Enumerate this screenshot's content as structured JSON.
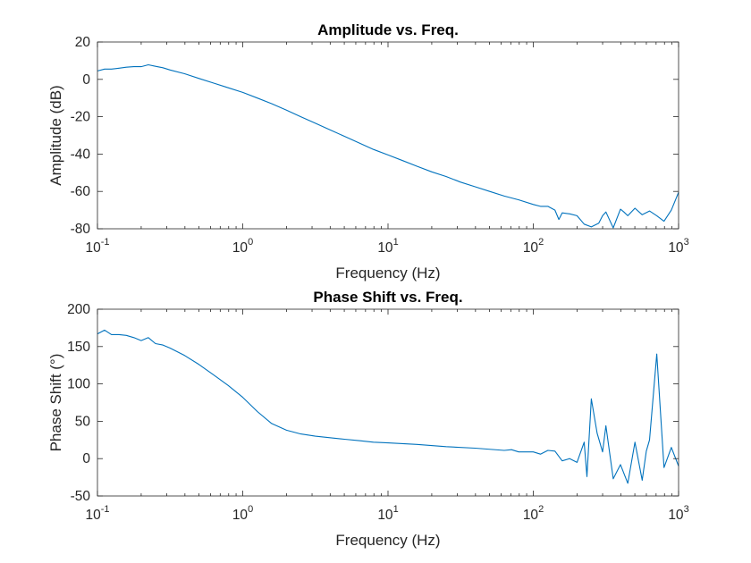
{
  "series_color": "#0072BD",
  "chart_data": [
    {
      "type": "line",
      "title": "Amplitude vs. Freq.",
      "xlabel": "Frequency (Hz)",
      "ylabel": "Amplitude (dB)",
      "xscale": "log",
      "xlim": [
        0.1,
        1000
      ],
      "ylim": [
        -80,
        20
      ],
      "grid": false,
      "x_ticks": [
        {
          "value": 0.1,
          "base": "10",
          "exp": "-1"
        },
        {
          "value": 1,
          "base": "10",
          "exp": "0"
        },
        {
          "value": 10,
          "base": "10",
          "exp": "1"
        },
        {
          "value": 100,
          "base": "10",
          "exp": "2"
        },
        {
          "value": 1000,
          "base": "10",
          "exp": "3"
        }
      ],
      "y_ticks": [
        {
          "value": 20,
          "label": "20"
        },
        {
          "value": 0,
          "label": "0"
        },
        {
          "value": -20,
          "label": "-20"
        },
        {
          "value": -40,
          "label": "-40"
        },
        {
          "value": -60,
          "label": "-60"
        },
        {
          "value": -80,
          "label": "-80"
        }
      ],
      "series": [
        {
          "x": [
            0.1,
            0.112,
            0.125,
            0.141,
            0.158,
            0.178,
            0.2,
            0.224,
            0.251,
            0.282,
            0.316,
            0.398,
            0.5,
            0.631,
            0.794,
            1.0,
            1.26,
            1.58,
            2.0,
            2.51,
            3.16,
            3.98,
            5.01,
            6.31,
            7.94,
            10,
            12.6,
            15.8,
            20,
            25.1,
            31.6,
            39.8,
            50.1,
            63.1,
            79.4,
            100,
            112,
            126,
            141,
            150,
            158,
            178,
            200,
            224,
            251,
            282,
            300,
            316,
            355,
            398,
            420,
            447,
            501,
            562,
            631,
            708,
            794,
            891,
            1000
          ],
          "y": [
            4.5,
            5.5,
            5.5,
            6.0,
            6.5,
            6.8,
            6.8,
            7.8,
            7.0,
            6.2,
            5.0,
            3.0,
            0.5,
            -2.0,
            -4.5,
            -7.0,
            -10.0,
            -13.0,
            -16.5,
            -20.0,
            -23.5,
            -27.0,
            -30.5,
            -34.0,
            -37.5,
            -40.5,
            -43.5,
            -46.5,
            -49.5,
            -52.0,
            -55.0,
            -57.5,
            -60.0,
            -62.5,
            -64.5,
            -67.0,
            -68.0,
            -68.0,
            -70.0,
            -75.0,
            -71.5,
            -72.0,
            -73.0,
            -77.5,
            -79.0,
            -77.0,
            -73.0,
            -71.0,
            -79.5,
            -69.5,
            -71.0,
            -73.0,
            -69.0,
            -72.5,
            -70.5,
            -73.0,
            -76.0,
            -70.0,
            -60.5
          ]
        }
      ]
    },
    {
      "type": "line",
      "title": "Phase Shift vs. Freq.",
      "xlabel": "Frequency (Hz)",
      "ylabel": "Phase Shift (°)",
      "xscale": "log",
      "xlim": [
        0.1,
        1000
      ],
      "ylim": [
        -50,
        200
      ],
      "grid": false,
      "x_ticks": [
        {
          "value": 0.1,
          "base": "10",
          "exp": "-1"
        },
        {
          "value": 1,
          "base": "10",
          "exp": "0"
        },
        {
          "value": 10,
          "base": "10",
          "exp": "1"
        },
        {
          "value": 100,
          "base": "10",
          "exp": "2"
        },
        {
          "value": 1000,
          "base": "10",
          "exp": "3"
        }
      ],
      "y_ticks": [
        {
          "value": 200,
          "label": "200"
        },
        {
          "value": 150,
          "label": "150"
        },
        {
          "value": 100,
          "label": "100"
        },
        {
          "value": 50,
          "label": "50"
        },
        {
          "value": 0,
          "label": "0"
        },
        {
          "value": -50,
          "label": "-50"
        }
      ],
      "series": [
        {
          "x": [
            0.1,
            0.112,
            0.125,
            0.141,
            0.158,
            0.178,
            0.2,
            0.224,
            0.251,
            0.282,
            0.316,
            0.398,
            0.5,
            0.631,
            0.794,
            1.0,
            1.26,
            1.58,
            2.0,
            2.51,
            3.16,
            3.98,
            5.01,
            6.31,
            7.94,
            10,
            15.8,
            25.1,
            39.8,
            63.1,
            70.8,
            79.4,
            100,
            112,
            126,
            141,
            158,
            178,
            200,
            224,
            234,
            251,
            275,
            300,
            316,
            355,
            398,
            447,
            501,
            562,
            600,
            631,
            708,
            794,
            891,
            1000
          ],
          "y": [
            167,
            172,
            166,
            166,
            165,
            162,
            158,
            162,
            154,
            152,
            148,
            138,
            126,
            112,
            98,
            82,
            63,
            47,
            38,
            33,
            30,
            28,
            26,
            24,
            22,
            21,
            19,
            16,
            14,
            11,
            12,
            9,
            9,
            6,
            11,
            10,
            -3,
            0,
            -5,
            22,
            -24,
            80,
            34,
            9,
            44,
            -27,
            -8,
            -33,
            22,
            -29,
            10,
            25,
            140,
            -12,
            15,
            -10
          ]
        }
      ]
    }
  ]
}
